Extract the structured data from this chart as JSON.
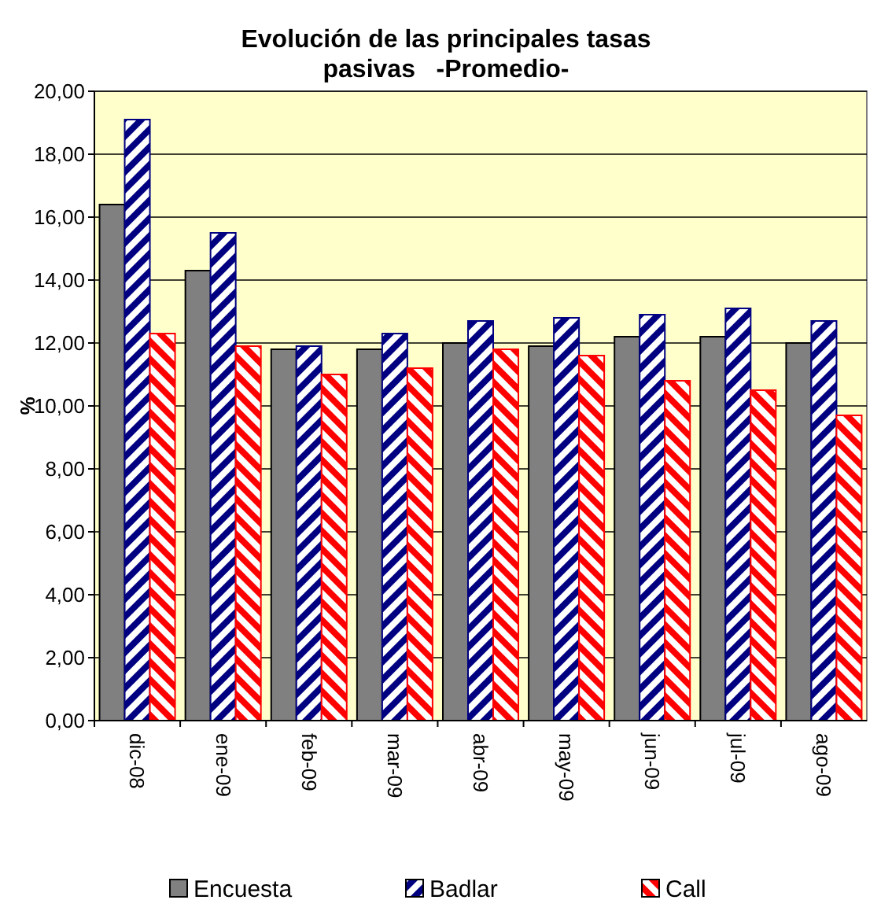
{
  "chart_data": {
    "type": "bar",
    "title": "Evolución de las principales tasas pasivas   -Promedio-",
    "ylabel": "%",
    "categories": [
      "dic-08",
      "ene-09",
      "feb-09",
      "mar-09",
      "abr-09",
      "may-09",
      "jun-09",
      "jul-09",
      "ago-09"
    ],
    "series": [
      {
        "name": "Encuesta",
        "color": "#808080",
        "values": [
          16.4,
          14.3,
          11.8,
          11.8,
          12.0,
          11.9,
          12.2,
          12.2,
          12.0
        ]
      },
      {
        "name": "Badlar",
        "color": "#000080",
        "values": [
          19.1,
          15.5,
          11.9,
          12.3,
          12.7,
          12.8,
          12.9,
          13.1,
          12.7
        ]
      },
      {
        "name": "Call",
        "color": "#ff0000",
        "values": [
          12.3,
          11.9,
          11.0,
          11.2,
          11.8,
          11.6,
          10.8,
          10.5,
          9.7
        ]
      }
    ],
    "ylim": [
      0,
      20
    ],
    "yticks": [
      {
        "value": 0,
        "label": "0,00"
      },
      {
        "value": 2,
        "label": "2,00"
      },
      {
        "value": 4,
        "label": "4,00"
      },
      {
        "value": 6,
        "label": "6,00"
      },
      {
        "value": 8,
        "label": "8,00"
      },
      {
        "value": 10,
        "label": "10,00"
      },
      {
        "value": 12,
        "label": "12,00"
      },
      {
        "value": 14,
        "label": "14,00"
      },
      {
        "value": 16,
        "label": "16,00"
      },
      {
        "value": 18,
        "label": "18,00"
      },
      {
        "value": 20,
        "label": "20,00"
      }
    ],
    "grid": "y",
    "legend": "bottom"
  }
}
